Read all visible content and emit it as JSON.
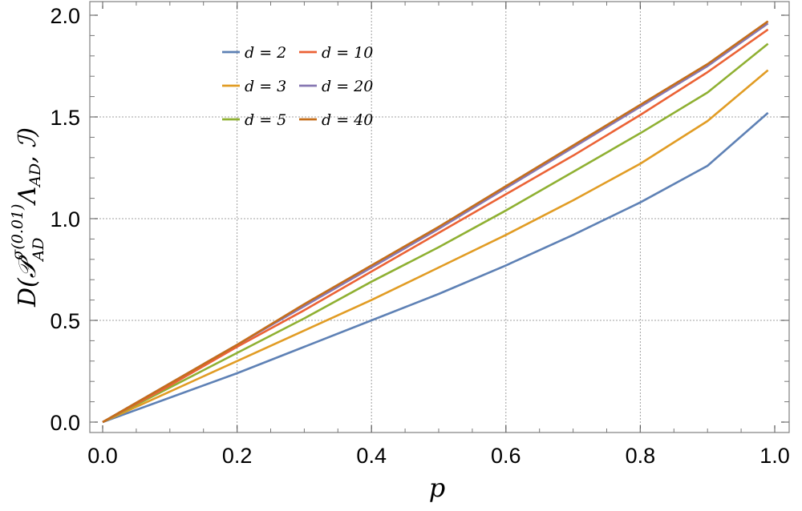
{
  "chart_data": {
    "type": "line",
    "xlabel": "p",
    "ylabel": "D(𝒫_AD^σ(0.01) Λ_AD, ℐ)",
    "xlim": [
      0,
      1.0
    ],
    "ylim": [
      0,
      2.0
    ],
    "x_ticks": [
      "0.0",
      "0.2",
      "0.4",
      "0.6",
      "0.8",
      "1.0"
    ],
    "y_ticks": [
      "0.0",
      "0.5",
      "1.0",
      "1.5",
      "2.0"
    ],
    "grid": true,
    "legend_position": "top-left",
    "x": [
      0,
      0.1,
      0.2,
      0.3,
      0.4,
      0.5,
      0.6,
      0.7,
      0.8,
      0.9,
      0.99
    ],
    "series": [
      {
        "name": "d = 2",
        "color": "#5E81B5",
        "values": [
          0,
          0.12,
          0.24,
          0.37,
          0.5,
          0.63,
          0.77,
          0.92,
          1.08,
          1.26,
          1.52
        ]
      },
      {
        "name": "d = 3",
        "color": "#E19C24",
        "values": [
          0,
          0.15,
          0.3,
          0.45,
          0.6,
          0.76,
          0.92,
          1.09,
          1.27,
          1.48,
          1.73
        ]
      },
      {
        "name": "d = 5",
        "color": "#8FB032",
        "values": [
          0,
          0.17,
          0.34,
          0.51,
          0.69,
          0.86,
          1.04,
          1.23,
          1.42,
          1.62,
          1.86
        ]
      },
      {
        "name": "d = 10",
        "color": "#EB6235",
        "values": [
          0,
          0.18,
          0.37,
          0.55,
          0.74,
          0.93,
          1.12,
          1.31,
          1.51,
          1.72,
          1.93
        ]
      },
      {
        "name": "d = 20",
        "color": "#8778B3",
        "values": [
          0,
          0.19,
          0.38,
          0.57,
          0.76,
          0.95,
          1.15,
          1.35,
          1.55,
          1.75,
          1.96
        ]
      },
      {
        "name": "d = 40",
        "color": "#C56E1A",
        "values": [
          0,
          0.19,
          0.38,
          0.58,
          0.77,
          0.96,
          1.16,
          1.36,
          1.56,
          1.76,
          1.97
        ]
      }
    ]
  }
}
